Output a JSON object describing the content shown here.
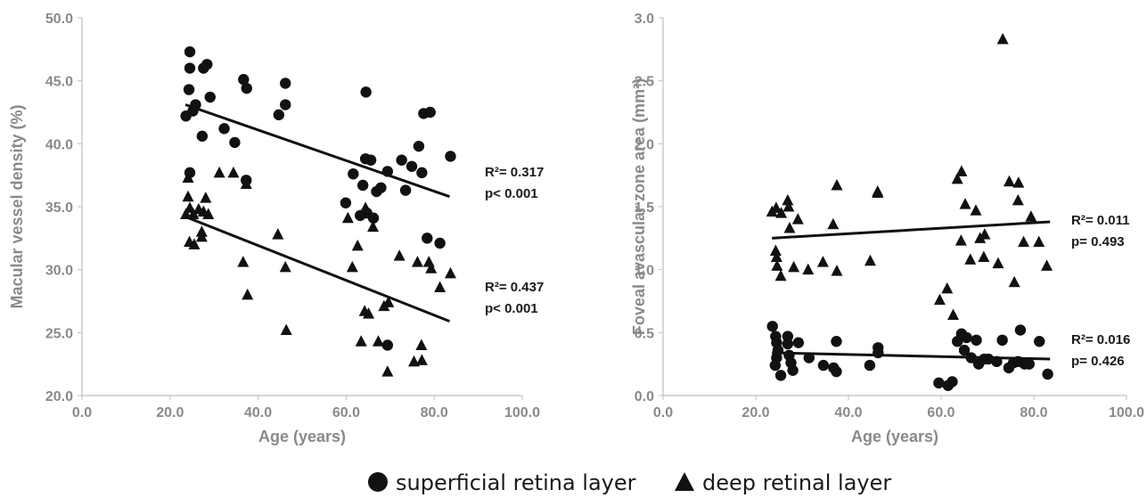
{
  "colors": {
    "marker": "#111111",
    "axis": "#bfbfbf",
    "tick_text": "#8a8a8a",
    "text": "#1a1a1a"
  },
  "legend": {
    "items": [
      {
        "marker": "circle",
        "label": "superficial retina layer"
      },
      {
        "marker": "triangle",
        "label": "deep retinal layer"
      }
    ]
  },
  "chart_data": [
    {
      "type": "scatter",
      "xlabel": "Age (years)",
      "ylabel": "Macular vessel density (%)",
      "xlim": [
        0,
        100
      ],
      "ylim": [
        20,
        50
      ],
      "xticks": [
        "0.0",
        "20.0",
        "40.0",
        "60.0",
        "80.0",
        "100.0"
      ],
      "yticks": [
        "20.0",
        "25.0",
        "30.0",
        "35.0",
        "40.0",
        "45.0",
        "50.0"
      ],
      "grid": false,
      "series": [
        {
          "name": "superficial retina layer",
          "marker": "circle",
          "points": [
            [
              24.5,
              47.3
            ],
            [
              24.5,
              46.0
            ],
            [
              24.3,
              44.3
            ],
            [
              25.8,
              43.1
            ],
            [
              23.6,
              42.2
            ],
            [
              25.2,
              42.6
            ],
            [
              27.6,
              46.0
            ],
            [
              28.4,
              46.3
            ],
            [
              29.1,
              43.7
            ],
            [
              27.3,
              40.6
            ],
            [
              32.3,
              41.2
            ],
            [
              34.7,
              40.1
            ],
            [
              36.7,
              45.1
            ],
            [
              37.4,
              44.4
            ],
            [
              37.3,
              37.1
            ],
            [
              24.5,
              37.7
            ],
            [
              44.7,
              42.3
            ],
            [
              46.2,
              44.8
            ],
            [
              46.2,
              43.1
            ],
            [
              64.5,
              44.1
            ],
            [
              59.9,
              35.3
            ],
            [
              61.6,
              37.6
            ],
            [
              63.2,
              34.3
            ],
            [
              63.8,
              36.7
            ],
            [
              64.7,
              34.5
            ],
            [
              64.4,
              38.8
            ],
            [
              66.2,
              34.1
            ],
            [
              65.6,
              38.7
            ],
            [
              66.9,
              36.2
            ],
            [
              67.9,
              36.5
            ],
            [
              69.4,
              37.8
            ],
            [
              72.6,
              38.7
            ],
            [
              73.5,
              36.3
            ],
            [
              74.9,
              38.2
            ],
            [
              76.5,
              39.8
            ],
            [
              77.2,
              37.7
            ],
            [
              77.6,
              42.4
            ],
            [
              79.1,
              42.5
            ],
            [
              78.4,
              32.5
            ],
            [
              81.3,
              32.1
            ],
            [
              83.7,
              39.0
            ],
            [
              69.4,
              24.0
            ]
          ]
        },
        {
          "name": "deep retinal layer",
          "marker": "triangle",
          "points": [
            [
              24.1,
              37.3
            ],
            [
              23.6,
              34.4
            ],
            [
              24.1,
              35.8
            ],
            [
              24.5,
              34.9
            ],
            [
              25.3,
              34.4
            ],
            [
              24.4,
              32.2
            ],
            [
              25.5,
              32.0
            ],
            [
              26.5,
              34.8
            ],
            [
              27.2,
              33.0
            ],
            [
              27.2,
              32.6
            ],
            [
              28.1,
              35.7
            ],
            [
              27.6,
              34.6
            ],
            [
              28.7,
              34.4
            ],
            [
              31.2,
              37.7
            ],
            [
              34.4,
              37.7
            ],
            [
              37.3,
              36.8
            ],
            [
              36.6,
              30.6
            ],
            [
              37.6,
              28.0
            ],
            [
              44.5,
              32.8
            ],
            [
              46.2,
              30.2
            ],
            [
              46.4,
              25.2
            ],
            [
              60.4,
              34.1
            ],
            [
              61.4,
              30.2
            ],
            [
              62.6,
              31.9
            ],
            [
              64.4,
              34.9
            ],
            [
              63.4,
              24.3
            ],
            [
              64.2,
              26.7
            ],
            [
              65.1,
              26.5
            ],
            [
              66.1,
              33.4
            ],
            [
              67.3,
              24.3
            ],
            [
              68.6,
              27.1
            ],
            [
              69.6,
              27.4
            ],
            [
              69.4,
              21.9
            ],
            [
              72.1,
              31.1
            ],
            [
              75.4,
              22.7
            ],
            [
              76.2,
              30.6
            ],
            [
              77.1,
              24.0
            ],
            [
              77.2,
              22.8
            ],
            [
              78.8,
              30.6
            ],
            [
              79.3,
              30.1
            ],
            [
              81.3,
              28.6
            ],
            [
              83.7,
              29.7
            ]
          ]
        }
      ],
      "fits": [
        {
          "series": "superficial retina layer",
          "x": [
            23.5,
            83.5
          ],
          "y": [
            43.1,
            35.8
          ],
          "r2_label": "R²= 0.317",
          "p_label": "p< 0.001"
        },
        {
          "series": "deep retinal layer",
          "x": [
            23.5,
            83.5
          ],
          "y": [
            34.2,
            25.9
          ],
          "r2_label": "R²= 0.437",
          "p_label": "p< 0.001"
        }
      ]
    },
    {
      "type": "scatter",
      "xlabel": "Age (years)",
      "ylabel": "Foveal avascular zone area (mm²)",
      "xlim": [
        0,
        100
      ],
      "ylim": [
        0,
        3
      ],
      "xticks": [
        "0.0",
        "20.0",
        "40.0",
        "60.0",
        "80.0",
        "100.0"
      ],
      "yticks": [
        "0.0",
        "0.5",
        "1.0",
        "1.5",
        "2.0",
        "2.5",
        "3.0"
      ],
      "grid": false,
      "series": [
        {
          "name": "superficial retina layer",
          "marker": "circle",
          "points": [
            [
              23.6,
              0.55
            ],
            [
              24.3,
              0.47
            ],
            [
              24.5,
              0.42
            ],
            [
              24.8,
              0.36
            ],
            [
              24.5,
              0.3
            ],
            [
              24.2,
              0.24
            ],
            [
              25.4,
              0.16
            ],
            [
              26.9,
              0.47
            ],
            [
              26.9,
              0.41
            ],
            [
              27.2,
              0.32
            ],
            [
              27.6,
              0.26
            ],
            [
              28.0,
              0.2
            ],
            [
              29.2,
              0.42
            ],
            [
              31.5,
              0.3
            ],
            [
              34.6,
              0.24
            ],
            [
              36.8,
              0.22
            ],
            [
              37.4,
              0.43
            ],
            [
              37.4,
              0.19
            ],
            [
              44.6,
              0.24
            ],
            [
              46.4,
              0.38
            ],
            [
              46.4,
              0.34
            ],
            [
              59.5,
              0.1
            ],
            [
              61.5,
              0.08
            ],
            [
              62.4,
              0.11
            ],
            [
              63.5,
              0.43
            ],
            [
              64.4,
              0.49
            ],
            [
              65.0,
              0.36
            ],
            [
              65.5,
              0.46
            ],
            [
              66.5,
              0.3
            ],
            [
              67.6,
              0.44
            ],
            [
              68.1,
              0.25
            ],
            [
              69.3,
              0.29
            ],
            [
              70.2,
              0.29
            ],
            [
              72.0,
              0.27
            ],
            [
              73.2,
              0.44
            ],
            [
              74.6,
              0.22
            ],
            [
              75.6,
              0.26
            ],
            [
              76.6,
              0.27
            ],
            [
              77.1,
              0.52
            ],
            [
              78.0,
              0.25
            ],
            [
              79.0,
              0.25
            ],
            [
              81.2,
              0.43
            ],
            [
              83.0,
              0.17
            ]
          ]
        },
        {
          "name": "deep retinal layer",
          "marker": "triangle",
          "points": [
            [
              23.5,
              1.46
            ],
            [
              24.4,
              1.49
            ],
            [
              24.3,
              1.15
            ],
            [
              24.5,
              1.1
            ],
            [
              24.6,
              1.03
            ],
            [
              25.4,
              0.95
            ],
            [
              25.5,
              1.45
            ],
            [
              26.9,
              1.55
            ],
            [
              27.1,
              1.5
            ],
            [
              27.3,
              1.33
            ],
            [
              28.2,
              1.02
            ],
            [
              29.1,
              1.4
            ],
            [
              31.3,
              1.0
            ],
            [
              34.5,
              1.06
            ],
            [
              36.7,
              1.36
            ],
            [
              37.5,
              1.67
            ],
            [
              37.5,
              0.99
            ],
            [
              44.7,
              1.07
            ],
            [
              46.3,
              1.61
            ],
            [
              46.3,
              1.62
            ],
            [
              59.7,
              0.76
            ],
            [
              61.3,
              0.85
            ],
            [
              62.6,
              0.64
            ],
            [
              63.5,
              1.72
            ],
            [
              64.4,
              1.78
            ],
            [
              64.3,
              1.23
            ],
            [
              65.2,
              1.52
            ],
            [
              66.3,
              1.08
            ],
            [
              67.5,
              1.47
            ],
            [
              68.4,
              1.25
            ],
            [
              69.2,
              1.1
            ],
            [
              69.4,
              1.28
            ],
            [
              72.3,
              1.05
            ],
            [
              73.3,
              2.83
            ],
            [
              74.7,
              1.7
            ],
            [
              75.8,
              0.9
            ],
            [
              76.7,
              1.69
            ],
            [
              76.6,
              1.55
            ],
            [
              77.8,
              1.22
            ],
            [
              79.4,
              1.42
            ],
            [
              81.1,
              1.22
            ],
            [
              82.8,
              1.03
            ]
          ]
        }
      ],
      "fits": [
        {
          "series": "deep retinal layer",
          "x": [
            23.5,
            83.5
          ],
          "y": [
            1.25,
            1.38
          ],
          "r2_label": "R²= 0.011",
          "p_label": "p= 0.493"
        },
        {
          "series": "superficial retina layer",
          "x": [
            23.5,
            83.5
          ],
          "y": [
            0.34,
            0.29
          ],
          "r2_label": "R²= 0.016",
          "p_label": "p= 0.426"
        }
      ]
    }
  ]
}
